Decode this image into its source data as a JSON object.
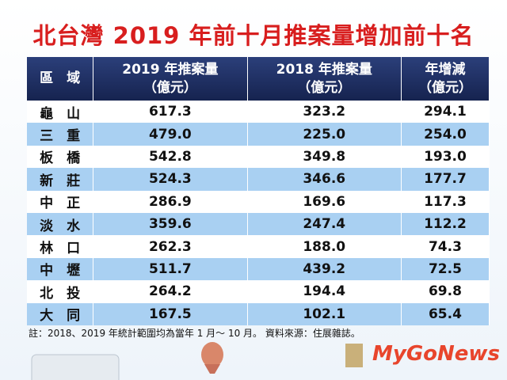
{
  "header": {
    "title": "北台灣 2019 年前十月推案量增加前十名"
  },
  "table": {
    "columns": [
      [
        "區　域"
      ],
      [
        "2019 年推案量",
        "（億元）"
      ],
      [
        "2018 年推案量",
        "（億元）"
      ],
      [
        "年增減",
        "（億元）"
      ]
    ],
    "rows": [
      [
        "龜　山",
        "617.3",
        "323.2",
        "294.1"
      ],
      [
        "三　重",
        "479.0",
        "225.0",
        "254.0"
      ],
      [
        "板　橋",
        "542.8",
        "349.8",
        "193.0"
      ],
      [
        "新　莊",
        "524.3",
        "346.6",
        "177.7"
      ],
      [
        "中　正",
        "286.9",
        "169.6",
        "117.3"
      ],
      [
        "淡　水",
        "359.6",
        "247.4",
        "112.2"
      ],
      [
        "林　口",
        "262.3",
        "188.0",
        "74.3"
      ],
      [
        "中　壢",
        "511.7",
        "439.2",
        "72.5"
      ],
      [
        "北　投",
        "264.2",
        "194.4",
        "69.8"
      ],
      [
        "大　同",
        "167.5",
        "102.1",
        "65.4"
      ]
    ]
  },
  "footer": {
    "note": "註：2018、2019 年統計範圍均為當年 1 月～ 10 月。 資料來源：住展雜誌。",
    "logo": "MyGoNews"
  }
}
